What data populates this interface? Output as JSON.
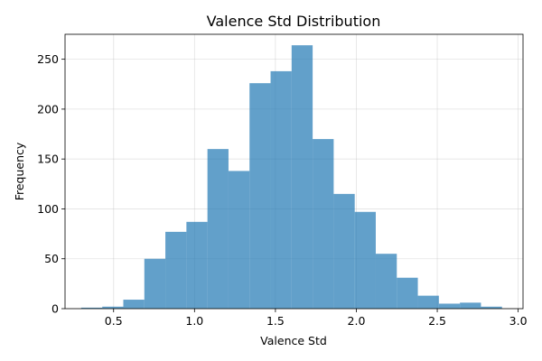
{
  "chart_data": {
    "type": "bar",
    "title": "Valence Std Distribution",
    "xlabel": "Valence Std",
    "ylabel": "Frequency",
    "xlim": [
      0.2,
      3.03
    ],
    "ylim": [
      0,
      275
    ],
    "xticks": [
      "0.5",
      "1.0",
      "1.5",
      "2.0",
      "2.5",
      "3.0"
    ],
    "yticks": [
      "0",
      "50",
      "100",
      "150",
      "200",
      "250"
    ],
    "grid": true,
    "bin_edges": [
      0.3,
      0.43,
      0.56,
      0.69,
      0.82,
      0.95,
      1.08,
      1.21,
      1.34,
      1.47,
      1.6,
      1.73,
      1.86,
      1.99,
      2.12,
      2.25,
      2.38,
      2.51,
      2.64,
      2.77,
      2.9
    ],
    "values": [
      1,
      2,
      9,
      50,
      77,
      87,
      160,
      138,
      226,
      238,
      264,
      170,
      115,
      97,
      55,
      31,
      13,
      5,
      6,
      2
    ],
    "color": "#1f77b4"
  }
}
